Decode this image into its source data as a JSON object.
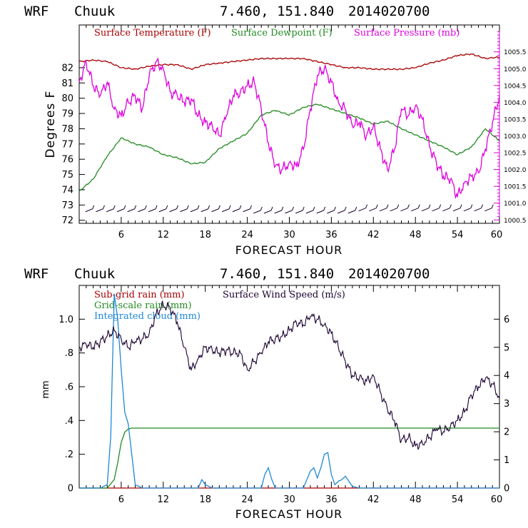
{
  "chart_data": [
    {
      "type": "line",
      "header": {
        "model": "WRF",
        "station": "Chuuk",
        "coords": "7.460, 151.840",
        "init": "2014020700"
      },
      "xlabel": "FORECAST HOUR",
      "ylabel": "Degrees F",
      "xlim": [
        0,
        60
      ],
      "xticks": [
        "6",
        "12",
        "18",
        "24",
        "30",
        "36",
        "42",
        "48",
        "54",
        "60"
      ],
      "ylim": [
        71.8,
        84.8
      ],
      "yticks": [
        "72",
        "73",
        "74",
        "75",
        "76",
        "77",
        "78",
        "79",
        "80",
        "81",
        "82"
      ],
      "y2lim": [
        1000.4,
        1006.3
      ],
      "y2ticks": [
        "1000.5",
        "1001.0",
        "1001.5",
        "1002.0",
        "1002.5",
        "1003.0",
        "1003.5",
        "1004.0",
        "1004.5",
        "1005.0",
        "1005.5"
      ],
      "colors": {
        "temp": "#a80000",
        "dew": "#228b22",
        "pres": "#dd00dd",
        "wind": "#1a0030"
      },
      "series": [
        {
          "name": "Surface Temperature (F)",
          "axis": "left",
          "x": [
            0,
            2,
            4,
            6,
            8,
            10,
            12,
            14,
            16,
            18,
            20,
            22,
            24,
            26,
            28,
            30,
            32,
            34,
            36,
            38,
            40,
            42,
            44,
            46,
            48,
            50,
            52,
            54,
            56,
            58,
            60
          ],
          "values": [
            82.4,
            82.5,
            82.4,
            82.0,
            81.9,
            82.1,
            82.2,
            82.2,
            81.9,
            82.2,
            82.3,
            82.4,
            82.5,
            82.6,
            82.6,
            82.6,
            82.6,
            82.4,
            82.2,
            82.0,
            82.0,
            81.9,
            81.9,
            81.9,
            82.0,
            82.3,
            82.5,
            82.8,
            82.9,
            82.6,
            82.7
          ]
        },
        {
          "name": "Surface Dewpoint (F)",
          "axis": "left",
          "x": [
            0,
            2,
            4,
            6,
            8,
            10,
            12,
            14,
            16,
            18,
            20,
            22,
            24,
            26,
            28,
            30,
            32,
            34,
            36,
            38,
            40,
            42,
            44,
            46,
            48,
            50,
            52,
            54,
            56,
            58,
            60
          ],
          "values": [
            73.9,
            74.7,
            76.2,
            77.4,
            77.0,
            76.8,
            76.3,
            76.1,
            75.7,
            75.8,
            76.7,
            77.2,
            77.7,
            78.9,
            79.2,
            78.9,
            79.4,
            79.6,
            79.3,
            79.0,
            78.7,
            78.3,
            78.5,
            78.0,
            77.6,
            77.2,
            76.8,
            76.3,
            76.8,
            78.0,
            77.2
          ]
        },
        {
          "name": "Surface Pressure (mb)",
          "axis": "right",
          "x": [
            0,
            1,
            2,
            3,
            4,
            5,
            6,
            7,
            8,
            9,
            10,
            11,
            12,
            13,
            14,
            15,
            16,
            17,
            18,
            19,
            20,
            21,
            22,
            23,
            24,
            25,
            26,
            27,
            28,
            29,
            30,
            31,
            32,
            33,
            34,
            35,
            36,
            37,
            38,
            39,
            40,
            41,
            42,
            43,
            44,
            45,
            46,
            47,
            48,
            49,
            50,
            51,
            52,
            53,
            54,
            55,
            56,
            57,
            58,
            59,
            60
          ],
          "values": [
            1004.6,
            1005.2,
            1004.5,
            1004.2,
            1004.6,
            1003.8,
            1003.6,
            1004.0,
            1004.2,
            1003.8,
            1004.8,
            1005.2,
            1005.0,
            1004.3,
            1004.2,
            1004.0,
            1004.1,
            1003.6,
            1003.4,
            1003.3,
            1003.0,
            1003.6,
            1004.2,
            1004.3,
            1004.5,
            1004.6,
            1003.8,
            1002.8,
            1002.1,
            1002.0,
            1002.2,
            1002.1,
            1002.6,
            1003.8,
            1004.8,
            1005.0,
            1004.6,
            1004.0,
            1003.8,
            1003.3,
            1003.4,
            1003.0,
            1003.3,
            1002.6,
            1002.0,
            1002.6,
            1003.8,
            1003.6,
            1003.9,
            1003.5,
            1002.7,
            1002.2,
            1001.8,
            1001.7,
            1001.2,
            1001.6,
            1001.8,
            1001.9,
            1002.6,
            1003.4,
            1004.2
          ]
        }
      ]
    },
    {
      "type": "line",
      "header": {
        "model": "WRF",
        "station": "Chuuk",
        "coords": "7.460, 151.840",
        "init": "2014020700"
      },
      "xlabel": "FORECAST HOUR",
      "ylabel": "mm",
      "xlim": [
        0,
        60
      ],
      "xticks": [
        "6",
        "12",
        "18",
        "24",
        "30",
        "36",
        "42",
        "48",
        "54",
        "60"
      ],
      "ylim": [
        0,
        1.2
      ],
      "yticks": [
        "0",
        ".2",
        ".4",
        ".6",
        ".8",
        "1.0"
      ],
      "y2lim": [
        0,
        7.2
      ],
      "y2ticks": [
        "0",
        "1",
        "2",
        "3",
        "4",
        "5",
        "6"
      ],
      "colors": {
        "subgrid": "#a80000",
        "gridscale": "#228b22",
        "cloud": "#1e88d8",
        "wind": "#1a0030"
      },
      "series": [
        {
          "name": "Sub-grid rain (mm)",
          "axis": "left",
          "x": [
            0,
            60
          ],
          "values": [
            0,
            0
          ]
        },
        {
          "name": "Grid-scale rain (mm)",
          "axis": "left",
          "x": [
            0,
            4,
            5,
            5.5,
            6,
            6.5,
            7,
            7.5,
            8,
            20,
            40,
            60
          ],
          "values": [
            0,
            0,
            0.05,
            0.15,
            0.27,
            0.33,
            0.35,
            0.355,
            0.355,
            0.355,
            0.355,
            0.355
          ]
        },
        {
          "name": "Integrated cloud (mm)",
          "axis": "left",
          "x": [
            0,
            3,
            4,
            4.5,
            5,
            5.5,
            6,
            6.5,
            7,
            7.5,
            8,
            9,
            17,
            17.5,
            18,
            18.5,
            19,
            26,
            26.5,
            27,
            27.5,
            28,
            32,
            32.5,
            33,
            33.5,
            34,
            34.5,
            35,
            35.5,
            36,
            36.5,
            37,
            37.5,
            38,
            38.5,
            39,
            40,
            60
          ],
          "values": [
            0,
            0,
            0.02,
            0.3,
            1.15,
            1.0,
            0.7,
            0.45,
            0.38,
            0.2,
            0.02,
            0,
            0,
            0.05,
            0.02,
            0.01,
            0,
            0,
            0.08,
            0.12,
            0.05,
            0,
            0,
            0.05,
            0.1,
            0.12,
            0.06,
            0.12,
            0.2,
            0.21,
            0.08,
            0.02,
            0.04,
            0.05,
            0.07,
            0.04,
            0.01,
            0,
            0
          ]
        },
        {
          "name": "Surface Wind Speed (m/s)",
          "axis": "right",
          "x": [
            0,
            1,
            2,
            3,
            4,
            5,
            6,
            7,
            8,
            9,
            10,
            11,
            12,
            13,
            14,
            15,
            16,
            17,
            18,
            19,
            20,
            21,
            22,
            23,
            24,
            25,
            26,
            27,
            28,
            29,
            30,
            31,
            32,
            33,
            34,
            35,
            36,
            37,
            38,
            39,
            40,
            41,
            42,
            43,
            44,
            45,
            46,
            47,
            48,
            49,
            50,
            51,
            52,
            53,
            54,
            55,
            56,
            57,
            58,
            59,
            60
          ],
          "values": [
            5.0,
            5.1,
            5.0,
            5.2,
            5.4,
            5.6,
            5.3,
            5.0,
            5.2,
            5.3,
            5.5,
            6.2,
            6.5,
            6.4,
            5.9,
            5.0,
            4.2,
            4.6,
            5.0,
            4.9,
            4.8,
            4.9,
            4.8,
            4.8,
            4.2,
            4.5,
            4.8,
            5.2,
            5.3,
            5.4,
            5.6,
            5.9,
            5.8,
            6.1,
            6.0,
            5.8,
            5.5,
            5.0,
            4.5,
            4.0,
            3.9,
            3.8,
            4.0,
            3.4,
            2.8,
            2.4,
            1.7,
            1.8,
            1.5,
            1.6,
            1.8,
            2.1,
            2.0,
            2.2,
            2.4,
            2.7,
            3.3,
            3.6,
            3.9,
            3.7,
            3.2
          ]
        }
      ]
    }
  ]
}
